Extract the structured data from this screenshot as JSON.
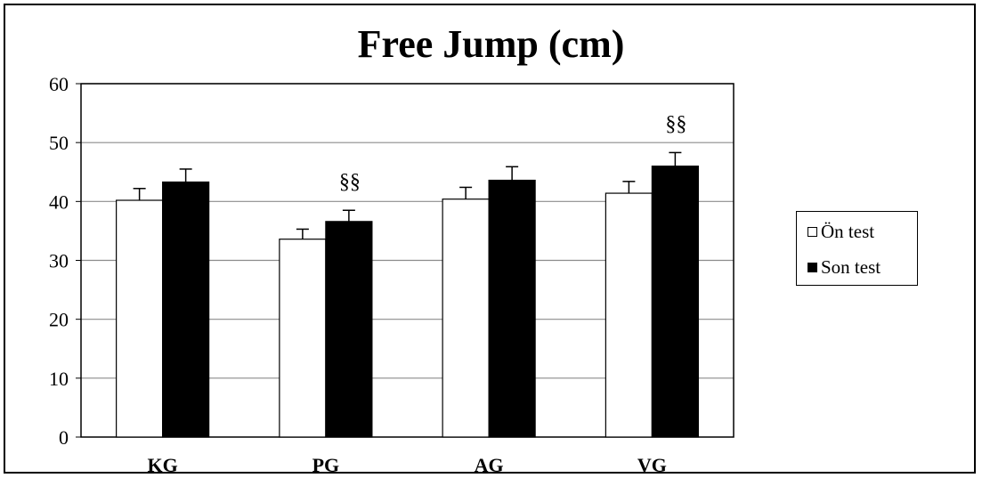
{
  "chart_data": {
    "type": "bar",
    "title": "Free Jump (cm)",
    "xlabel": "",
    "ylabel": "",
    "categories": [
      "KG",
      "PG",
      "AG",
      "VG"
    ],
    "ylim": [
      0,
      60
    ],
    "yticks": [
      0,
      10,
      20,
      30,
      40,
      50,
      60
    ],
    "grid": true,
    "legend_position": "right",
    "series": [
      {
        "name": "Ön test",
        "values": [
          40.2,
          33.6,
          40.4,
          41.4
        ],
        "error": [
          2.0,
          1.7,
          2.0,
          2.0
        ],
        "color": "#ffffff"
      },
      {
        "name": "Son test",
        "values": [
          43.3,
          36.6,
          43.6,
          46.0
        ],
        "error": [
          2.2,
          1.9,
          2.3,
          2.3
        ],
        "color": "#000000"
      }
    ],
    "annotations": [
      {
        "category": "PG",
        "text": "§§"
      },
      {
        "category": "VG",
        "text": "§§"
      }
    ]
  }
}
